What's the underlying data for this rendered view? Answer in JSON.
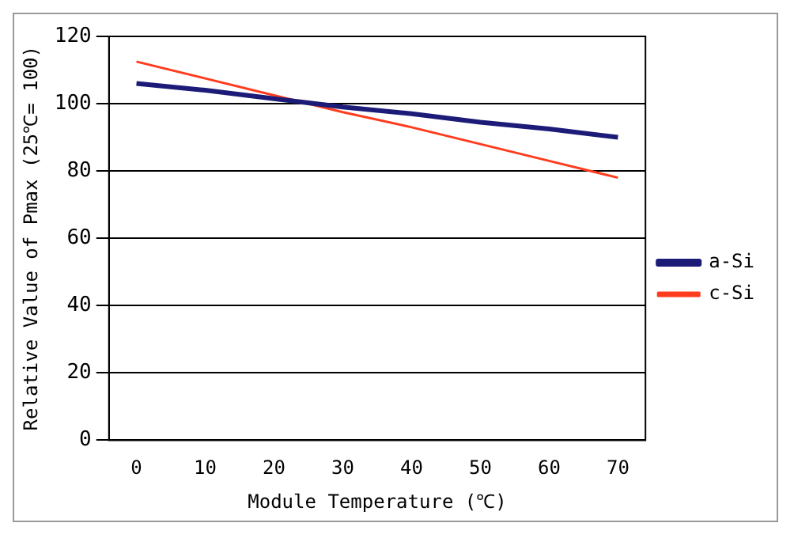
{
  "chart_data": {
    "type": "line",
    "xlabel": "Module Temperature (℃)",
    "ylabel": "Relative Value of Pmax (25℃= 100)",
    "series": [
      {
        "name": "a-Si",
        "color": "#1c1c78",
        "x": [
          0,
          10,
          20,
          30,
          40,
          50,
          60,
          70
        ],
        "values": [
          106,
          104,
          101.5,
          99,
          97,
          94.5,
          92.5,
          90
        ]
      },
      {
        "name": "c-Si",
        "color": "#ff3c1e",
        "x": [
          0,
          10,
          20,
          30,
          40,
          50,
          60,
          70
        ],
        "values": [
          112.5,
          107.5,
          102.5,
          97.5,
          93,
          88,
          83,
          78
        ]
      }
    ],
    "xlim": [
      -4,
      74
    ],
    "xticks": [
      0,
      10,
      20,
      30,
      40,
      50,
      60,
      70
    ],
    "ylim": [
      0,
      120
    ],
    "yticks": [
      0,
      20,
      40,
      60,
      80,
      100,
      120
    ],
    "grid": "y",
    "legend": "right",
    "marker": "none",
    "line_style": "solid"
  }
}
